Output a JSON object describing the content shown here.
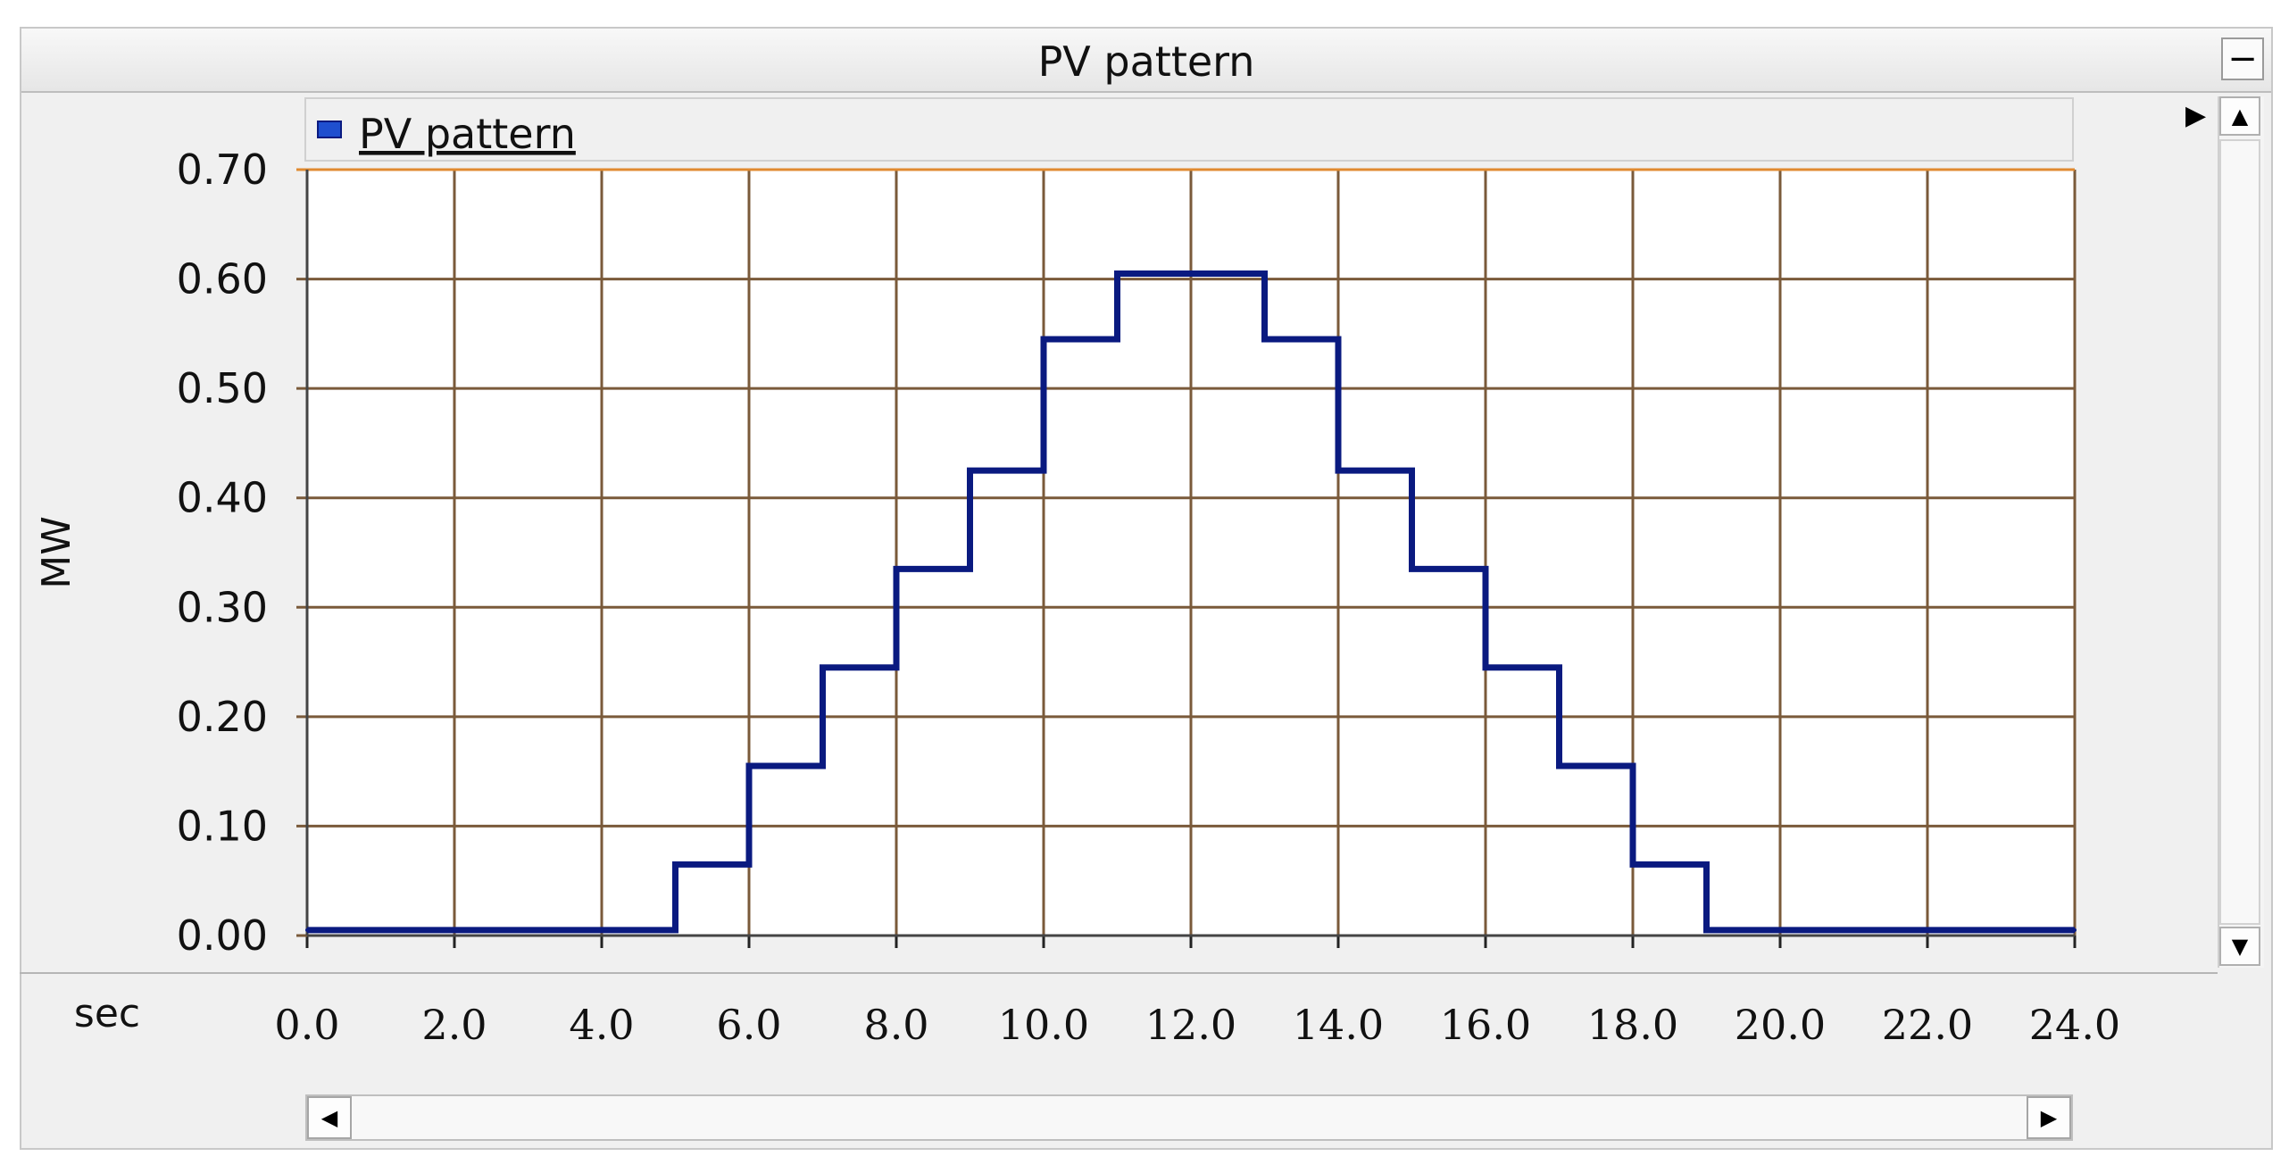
{
  "window": {
    "title": "PV pattern",
    "minimize_label": "−"
  },
  "icons": {
    "minimize": "minimize-icon",
    "expand": "triangle-right-icon",
    "scroll_up": "scroll-up-icon",
    "scroll_down": "scroll-down-icon",
    "scroll_left": "scroll-left-icon",
    "scroll_right": "scroll-right-icon"
  },
  "colors": {
    "series": "#0a1a80",
    "grid": "#7a5a3a",
    "top_line": "#e08a30",
    "legend_swatch": "#1f4fcf"
  },
  "chart_data": {
    "type": "line",
    "title": "PV pattern",
    "xlabel": "sec",
    "ylabel": "MW",
    "xlim": [
      0,
      24
    ],
    "ylim": [
      0,
      0.7
    ],
    "grid": true,
    "legend_position": "top-left",
    "x_ticks": [
      "0.0",
      "2.0",
      "4.0",
      "6.0",
      "8.0",
      "10.0",
      "12.0",
      "14.0",
      "16.0",
      "18.0",
      "20.0",
      "22.0",
      "24.0"
    ],
    "y_ticks": [
      "0.00",
      "0.10",
      "0.20",
      "0.30",
      "0.40",
      "0.50",
      "0.60",
      "0.70"
    ],
    "series": [
      {
        "name": "PV pattern",
        "step": true,
        "x": [
          0,
          5,
          6,
          7,
          8,
          9,
          10,
          11,
          13,
          14,
          15,
          16,
          17,
          18,
          19,
          24
        ],
        "y": [
          0.005,
          0.065,
          0.155,
          0.245,
          0.335,
          0.425,
          0.545,
          0.605,
          0.545,
          0.425,
          0.335,
          0.245,
          0.155,
          0.065,
          0.005,
          0.005
        ]
      }
    ]
  }
}
